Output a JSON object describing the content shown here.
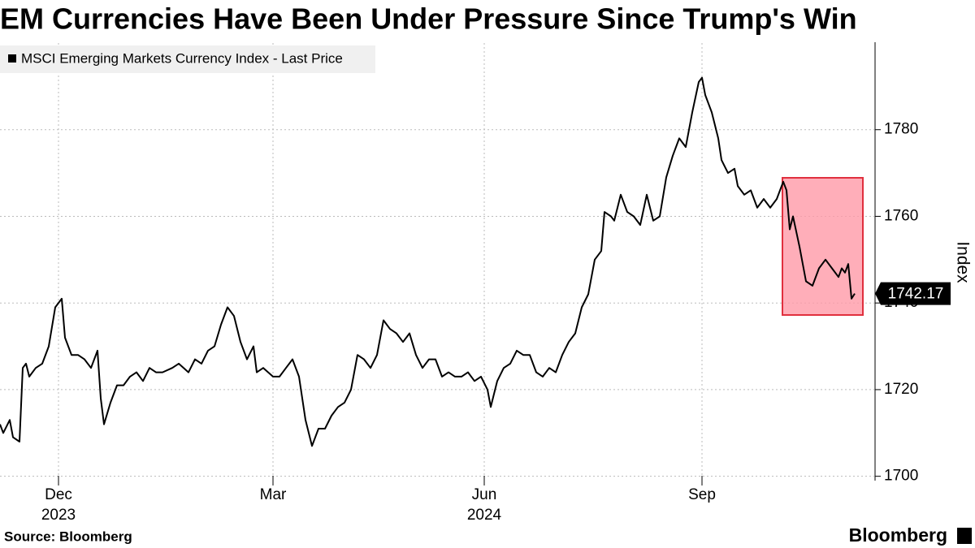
{
  "chart_data": {
    "type": "line",
    "title": "EM Currencies Have Been Under Pressure Since Trump's Win",
    "y_label": "Index",
    "source": "Source: Bloomberg",
    "brand": "Bloomberg",
    "grid": true,
    "xlim": [
      0,
      269
    ],
    "xticks": [
      {
        "value": 18,
        "label": "Dec",
        "sublabel": "2023"
      },
      {
        "value": 84,
        "label": "Mar"
      },
      {
        "value": 149,
        "label": "Jun",
        "sublabel": "2024"
      },
      {
        "value": 216,
        "label": "Sep"
      }
    ],
    "ylim": [
      1699,
      1800
    ],
    "yticks": [
      1700,
      1720,
      1740,
      1760,
      1780
    ],
    "series": [
      {
        "name": "MSCI Emerging Markets Currency Index - Last Price",
        "color": "#000000",
        "x": [
          0,
          1,
          3,
          4,
          6,
          7,
          8,
          9,
          11,
          13,
          15,
          17,
          19,
          20,
          22,
          24,
          26,
          28,
          30,
          31,
          32,
          34,
          36,
          38,
          40,
          42,
          44,
          46,
          48,
          50,
          53,
          55,
          58,
          60,
          62,
          64,
          66,
          68,
          70,
          72,
          74,
          76,
          78,
          79,
          81,
          84,
          86,
          88,
          90,
          92,
          94,
          96,
          98,
          100,
          102,
          104,
          106,
          108,
          110,
          112,
          114,
          116,
          118,
          120,
          122,
          124,
          126,
          128,
          130,
          132,
          134,
          136,
          138,
          140,
          142,
          144,
          146,
          148,
          150,
          151,
          153,
          155,
          157,
          159,
          161,
          163,
          165,
          167,
          169,
          171,
          173,
          175,
          177,
          179,
          181,
          183,
          185,
          186,
          188,
          189,
          191,
          193,
          195,
          197,
          199,
          201,
          203,
          205,
          207,
          209,
          211,
          213,
          215,
          216,
          217,
          219,
          221,
          222,
          224,
          226,
          227,
          229,
          231,
          233,
          235,
          237,
          239,
          241,
          242,
          243,
          244,
          246,
          248,
          250,
          252,
          254,
          256,
          258,
          259,
          260,
          261,
          262,
          263
        ],
        "values": [
          1712,
          1710,
          1713,
          1709,
          1708,
          1725,
          1726,
          1723,
          1725,
          1726,
          1730,
          1739,
          1741,
          1732,
          1728,
          1728,
          1727,
          1725,
          1729,
          1718,
          1712,
          1717,
          1721,
          1721,
          1723,
          1724,
          1722,
          1725,
          1724,
          1724,
          1725,
          1726,
          1724,
          1727,
          1726,
          1729,
          1730,
          1735,
          1739,
          1737,
          1731,
          1727,
          1730,
          1724,
          1725,
          1723,
          1723,
          1725,
          1727,
          1723,
          1713,
          1707,
          1711,
          1711,
          1714,
          1716,
          1717,
          1720,
          1728,
          1727,
          1725,
          1728,
          1736,
          1734,
          1733,
          1731,
          1733,
          1728,
          1725,
          1727,
          1727,
          1723,
          1724,
          1723,
          1723,
          1724,
          1722,
          1723,
          1720,
          1716,
          1722,
          1725,
          1726,
          1729,
          1728,
          1728,
          1724,
          1723,
          1725,
          1724,
          1728,
          1731,
          1733,
          1739,
          1742,
          1750,
          1752,
          1761,
          1760,
          1759,
          1765,
          1761,
          1760,
          1758,
          1765,
          1759,
          1760,
          1769,
          1774,
          1778,
          1776,
          1784,
          1791,
          1792,
          1788,
          1784,
          1778,
          1773,
          1770,
          1771,
          1767,
          1765,
          1766,
          1762,
          1764,
          1762,
          1764,
          1768,
          1766,
          1757,
          1760,
          1753,
          1745,
          1744,
          1748,
          1750,
          1748,
          1746,
          1748,
          1747,
          1749,
          1741,
          1742.17
        ]
      }
    ]
  }
}
